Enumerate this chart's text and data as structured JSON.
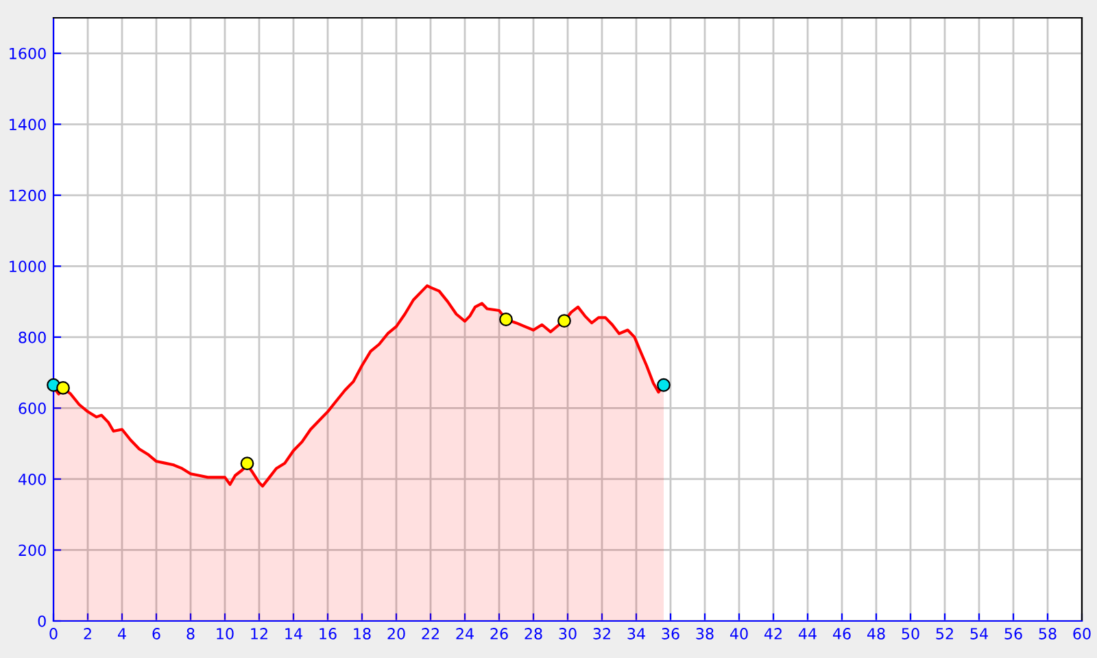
{
  "chart_data": {
    "type": "area",
    "xlim": [
      0,
      60
    ],
    "ylim": [
      0,
      1700
    ],
    "xticks": [
      0,
      2,
      4,
      6,
      8,
      10,
      12,
      14,
      16,
      18,
      20,
      22,
      24,
      26,
      28,
      30,
      32,
      34,
      36,
      38,
      40,
      42,
      44,
      46,
      48,
      50,
      52,
      54,
      56,
      58,
      60
    ],
    "yticks": [
      0,
      200,
      400,
      600,
      800,
      1000,
      1200,
      1400,
      1600
    ],
    "grid": true,
    "legend": false,
    "series": [
      {
        "color": "#ff0000",
        "x": [
          0,
          0.3,
          0.6,
          1.0,
          1.5,
          2.0,
          2.5,
          2.8,
          3.2,
          3.5,
          4.0,
          4.5,
          5.0,
          5.5,
          6.0,
          6.5,
          7.0,
          7.5,
          8.0,
          8.5,
          9.0,
          9.5,
          10.0,
          10.3,
          10.6,
          11.0,
          11.3,
          11.6,
          12.0,
          12.2,
          12.6,
          13.0,
          13.5,
          14.0,
          14.5,
          15.0,
          15.5,
          16.0,
          16.5,
          17.0,
          17.5,
          18.0,
          18.5,
          19.0,
          19.5,
          20.0,
          20.5,
          21.0,
          21.5,
          21.8,
          22.0,
          22.5,
          23.0,
          23.5,
          24.0,
          24.3,
          24.6,
          25.0,
          25.3,
          26.0,
          26.4,
          27.0,
          27.5,
          28.0,
          28.5,
          29.0,
          29.5,
          29.8,
          30.2,
          30.6,
          31.0,
          31.4,
          31.8,
          32.2,
          32.6,
          33.0,
          33.5,
          33.9,
          34.2,
          34.6,
          35.0,
          35.3,
          35.6
        ],
        "values": [
          660,
          640,
          655,
          640,
          610,
          590,
          575,
          580,
          560,
          535,
          540,
          510,
          485,
          470,
          450,
          445,
          440,
          430,
          415,
          410,
          405,
          405,
          405,
          385,
          410,
          425,
          440,
          420,
          390,
          380,
          405,
          430,
          445,
          480,
          505,
          540,
          565,
          590,
          620,
          650,
          675,
          720,
          760,
          780,
          810,
          830,
          865,
          905,
          930,
          945,
          940,
          930,
          900,
          865,
          845,
          860,
          885,
          895,
          880,
          875,
          850,
          840,
          830,
          820,
          835,
          815,
          835,
          845,
          870,
          885,
          860,
          840,
          855,
          855,
          835,
          810,
          820,
          800,
          765,
          720,
          670,
          645,
          665
        ]
      },
      {
        "type": "scatter",
        "color": "#00e5ee",
        "x": [
          0,
          35.6
        ],
        "values": [
          665,
          665
        ]
      },
      {
        "type": "scatter",
        "color": "#ffff00",
        "x": [
          0.56,
          11.3,
          26.4,
          29.8
        ],
        "values": [
          657,
          444,
          850,
          846
        ]
      }
    ]
  }
}
